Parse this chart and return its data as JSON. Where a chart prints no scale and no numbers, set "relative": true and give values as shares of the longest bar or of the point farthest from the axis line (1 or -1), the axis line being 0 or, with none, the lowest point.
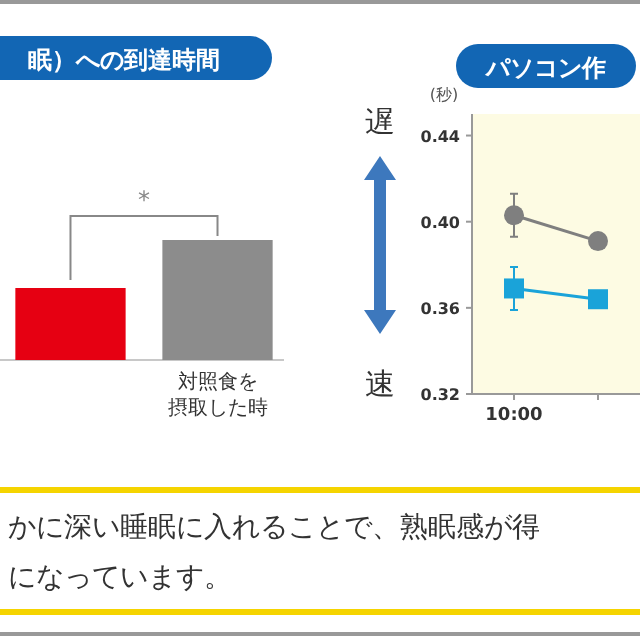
{
  "chart_data": [
    {
      "type": "bar",
      "title": "眠）への到達時間",
      "categories": [
        null,
        "対照食を摂取した時"
      ],
      "colors": [
        "#e60012",
        "#8c8c8c"
      ],
      "values": [
        0.6,
        1
      ],
      "relative": true,
      "annotations": [
        "*"
      ]
    },
    {
      "type": "line",
      "title": "パソコン作",
      "ylabel": "(秒)",
      "categories": [
        "10:00",
        null
      ],
      "ylim": [
        0.32,
        0.45
      ],
      "yticks": [
        {
          "value": 0.32,
          "label": "0.32"
        },
        {
          "value": 0.36,
          "label": "0.36"
        },
        {
          "value": 0.4,
          "label": "0.40"
        },
        {
          "value": 0.44,
          "label": "0.44"
        }
      ],
      "annotations": [
        "遅",
        "速"
      ],
      "series": [
        {
          "color": "#7f7f7f",
          "values": [
            0.403,
            0.391
          ],
          "errors": [
            0.01,
            null
          ],
          "marker": "circle"
        },
        {
          "color": "#1aa3d9",
          "values": [
            0.369,
            0.364
          ],
          "errors": [
            0.01,
            null
          ],
          "marker": "square"
        }
      ]
    },
    {
      "type": "other",
      "annotations": [
        "かに深い睡眠に入れることで、熟眠感が得",
        "になっています。"
      ]
    }
  ]
}
